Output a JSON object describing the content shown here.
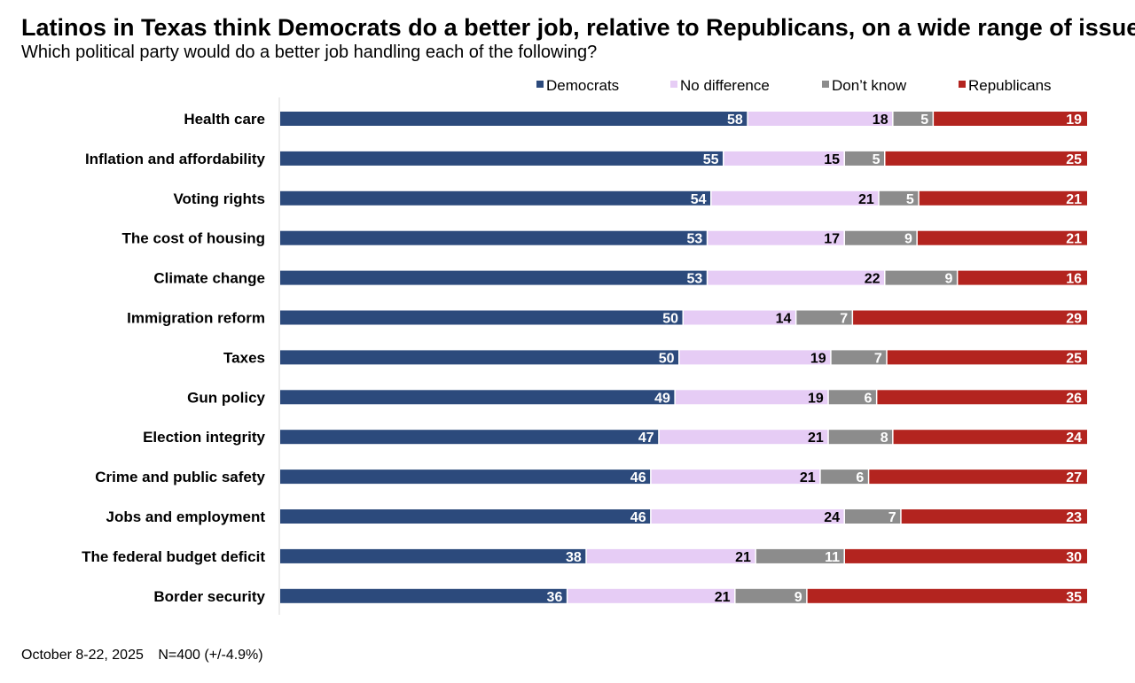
{
  "title": "Latinos in Texas think Democrats do a better job, relative to Republicans, on a wide range of issues",
  "subtitle": "Which political party would do a better job handling each of the following?",
  "footnote": {
    "dates": "October 8-22, 2025",
    "sample": "N=400 (+/-4.9%)"
  },
  "colors": {
    "democrats": "#2c4a7c",
    "no_difference": "#e6ccf5",
    "dont_know": "#8c8c8c",
    "republicans": "#b3241f"
  },
  "chart_data": {
    "type": "bar",
    "orientation": "horizontal",
    "stacked": true,
    "title": "Latinos in Texas think Democrats do a better job, relative to Republicans, on a wide range of issues",
    "subtitle": "Which political party would do a better job handling each of the following?",
    "xlim": [
      0,
      102
    ],
    "legend_position": "top-right",
    "categories": [
      "Health care",
      "Inflation and affordability",
      "Voting rights",
      "The cost of housing",
      "Climate change",
      "Immigration reform",
      "Taxes",
      "Gun policy",
      "Election integrity",
      "Crime and public safety",
      "Jobs and employment",
      "The federal budget deficit",
      "Border security"
    ],
    "series": [
      {
        "name": "Democrats",
        "color": "#2c4a7c",
        "label_color": "#ffffff",
        "values": [
          58,
          55,
          54,
          53,
          53,
          50,
          50,
          49,
          47,
          46,
          46,
          38,
          36
        ]
      },
      {
        "name": "No difference",
        "color": "#e6ccf5",
        "label_color": "#000000",
        "values": [
          18,
          15,
          21,
          17,
          22,
          14,
          19,
          19,
          21,
          21,
          24,
          21,
          21
        ]
      },
      {
        "name": "Don’t know",
        "color": "#8c8c8c",
        "label_color": "#ffffff",
        "values": [
          5,
          5,
          5,
          9,
          9,
          7,
          7,
          6,
          8,
          6,
          7,
          11,
          9
        ]
      },
      {
        "name": "Republicans",
        "color": "#b3241f",
        "label_color": "#ffffff",
        "values": [
          19,
          25,
          21,
          21,
          16,
          29,
          25,
          26,
          24,
          27,
          23,
          30,
          35
        ]
      }
    ]
  }
}
